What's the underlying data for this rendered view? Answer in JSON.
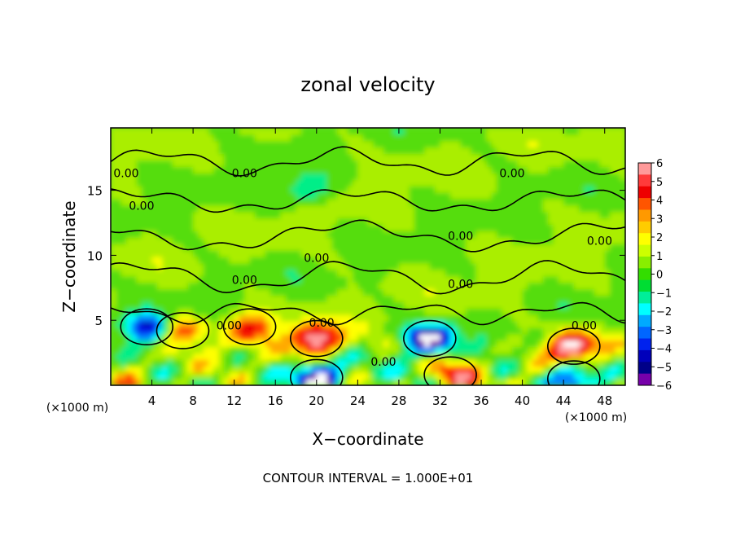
{
  "chart_data": {
    "type": "heatmap",
    "title": "zonal velocity",
    "xlabel": "X−coordinate",
    "ylabel": "Z−coordinate",
    "x_unit": "(×1000 m)",
    "y_unit": "(×1000 m)",
    "xlim": [
      0,
      50
    ],
    "ylim": [
      0,
      19.8
    ],
    "x_ticks": [
      4,
      8,
      12,
      16,
      20,
      24,
      28,
      32,
      36,
      40,
      44,
      48
    ],
    "y_ticks": [
      5,
      10,
      15
    ],
    "contour_level": "0.00",
    "footer": "CONTOUR INTERVAL = 1.000E+01",
    "colorbar": {
      "ticks": [
        "6",
        "5",
        "4",
        "3",
        "2",
        "1",
        "0",
        "−1",
        "−2",
        "−3",
        "−4",
        "−5",
        "−6"
      ],
      "colors": [
        "#ff9a9a",
        "#ff3a3a",
        "#ee0000",
        "#ff5500",
        "#ff9900",
        "#ffcc00",
        "#ffff00",
        "#ccff00",
        "#88ee00",
        "#33dd00",
        "#00dd33",
        "#00ee99",
        "#00ffff",
        "#00aaff",
        "#0066ff",
        "#0022ee",
        "#0000bb",
        "#000088",
        "#7700aa"
      ]
    },
    "contour_labels": [
      {
        "x": 1.5,
        "y": 16.0
      },
      {
        "x": 3.0,
        "y": 13.5
      },
      {
        "x": 13.0,
        "y": 16.0
      },
      {
        "x": 39.0,
        "y": 16.0
      },
      {
        "x": 34.0,
        "y": 11.2
      },
      {
        "x": 47.5,
        "y": 10.8
      },
      {
        "x": 20.0,
        "y": 9.5
      },
      {
        "x": 13.0,
        "y": 7.8
      },
      {
        "x": 34.0,
        "y": 7.5
      },
      {
        "x": 11.5,
        "y": 4.3
      },
      {
        "x": 20.5,
        "y": 4.5
      },
      {
        "x": 26.5,
        "y": 1.5
      },
      {
        "x": 46.0,
        "y": 4.3
      }
    ],
    "features": [
      {
        "x": 20,
        "y": 3.6,
        "value": 7
      },
      {
        "x": 31,
        "y": 3.6,
        "value": -7
      },
      {
        "x": 45,
        "y": 3.0,
        "value": 7
      },
      {
        "x": 13.5,
        "y": 4.5,
        "value": 4.5
      },
      {
        "x": 7,
        "y": 4.2,
        "value": 3.5
      },
      {
        "x": 3.5,
        "y": 4.5,
        "value": -5
      },
      {
        "x": 20,
        "y": 0.6,
        "value": -7
      },
      {
        "x": 45,
        "y": 0.5,
        "value": -6
      },
      {
        "x": 19,
        "y": 15.0,
        "value": -2.5
      },
      {
        "x": 33,
        "y": 0.8,
        "value": 4
      }
    ]
  }
}
